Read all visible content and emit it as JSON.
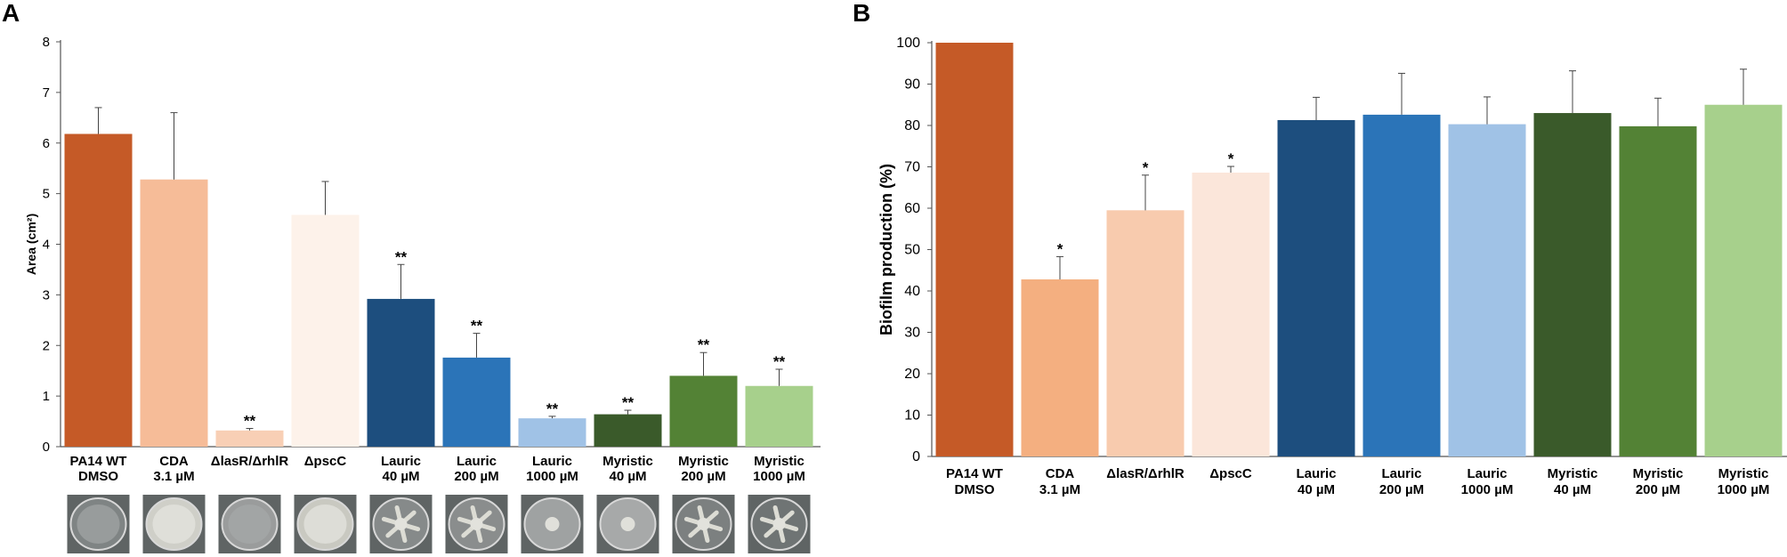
{
  "chart_data": [
    {
      "panel": "A",
      "type": "bar",
      "ylabel": "Area (cm²)",
      "ylim": [
        0,
        8
      ],
      "yticks": [
        0,
        1,
        2,
        3,
        4,
        5,
        6,
        7,
        8
      ],
      "categories": [
        [
          "PA14 WT",
          "DMSO"
        ],
        [
          "CDA",
          "3.1 µM"
        ],
        [
          "ΔlasR/ΔrhlR"
        ],
        [
          "ΔpscC"
        ],
        [
          "Lauric",
          "40 µM"
        ],
        [
          "Lauric",
          "200 µM"
        ],
        [
          "Lauric",
          "1000 µM"
        ],
        [
          "Myristic",
          "40 µM"
        ],
        [
          "Myristic",
          "200 µM"
        ],
        [
          "Myristic",
          "1000 µM"
        ]
      ],
      "values": [
        6.18,
        5.28,
        0.32,
        4.58,
        2.92,
        1.76,
        0.56,
        0.64,
        1.4,
        1.2
      ],
      "errors": [
        0.52,
        1.32,
        0.04,
        0.66,
        0.68,
        0.48,
        0.04,
        0.08,
        0.46,
        0.33
      ],
      "significance": [
        "",
        "",
        "**",
        "",
        "**",
        "**",
        "**",
        "**",
        "**",
        "**"
      ],
      "colors": [
        "#C55A27",
        "#F6BC98",
        "#F8CFB5",
        "#FDF2EA",
        "#1D4E7E",
        "#2B74B8",
        "#A0C2E6",
        "#3A5A2A",
        "#538235",
        "#A7D08C"
      ],
      "plate_images": [
        {
          "kind": "dark",
          "tone": "#7f8484"
        },
        {
          "kind": "light",
          "tone": "#cfcfc8"
        },
        {
          "kind": "dark",
          "tone": "#9a9c9c"
        },
        {
          "kind": "light",
          "tone": "#c9c9c1"
        },
        {
          "kind": "swarm",
          "tone": "#868a8a"
        },
        {
          "kind": "swarm",
          "tone": "#8a8d8d"
        },
        {
          "kind": "dot",
          "tone": "#9fa2a2"
        },
        {
          "kind": "dot",
          "tone": "#a7a9a9"
        },
        {
          "kind": "swarm",
          "tone": "#7c8080"
        },
        {
          "kind": "swarm",
          "tone": "#6f7474"
        }
      ]
    },
    {
      "panel": "B",
      "type": "bar",
      "ylabel": "Biofilm production (%)",
      "ylim": [
        0,
        100
      ],
      "yticks": [
        0,
        10,
        20,
        30,
        40,
        50,
        60,
        70,
        80,
        90,
        100
      ],
      "categories": [
        [
          "PA14 WT",
          "DMSO"
        ],
        [
          "CDA",
          "3.1 µM"
        ],
        [
          "ΔlasR/ΔrhlR"
        ],
        [
          "ΔpscC"
        ],
        [
          "Lauric",
          "40 µM"
        ],
        [
          "Lauric",
          "200 µM"
        ],
        [
          "Lauric",
          "1000 µM"
        ],
        [
          "Myristic",
          "40 µM"
        ],
        [
          "Myristic",
          "200 µM"
        ],
        [
          "Myristic",
          "1000 µM"
        ]
      ],
      "values": [
        100,
        42.8,
        59.5,
        68.6,
        81.3,
        82.6,
        80.3,
        83.0,
        79.8,
        85.0
      ],
      "errors": [
        0,
        5.5,
        8.5,
        1.5,
        5.5,
        10.0,
        6.6,
        10.2,
        6.8,
        8.6
      ],
      "significance": [
        "",
        "*",
        "*",
        "*",
        "",
        "",
        "",
        "",
        "",
        ""
      ],
      "colors": [
        "#C55A27",
        "#F4AF80",
        "#F8CBAE",
        "#FBE6DA",
        "#1D4E7E",
        "#2B74B8",
        "#A0C2E6",
        "#3A5A2A",
        "#538235",
        "#A7D08C"
      ]
    }
  ]
}
